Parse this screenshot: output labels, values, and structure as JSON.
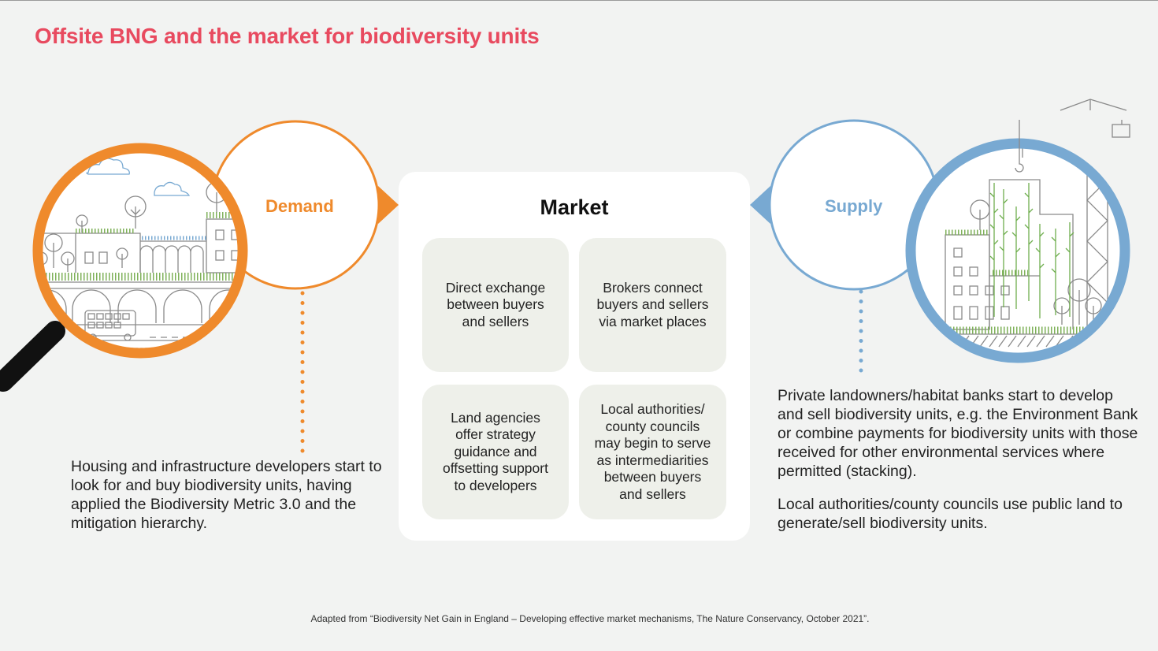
{
  "title": "Offsite BNG and the market for biodiversity units",
  "demand": {
    "label": "Demand",
    "description": "Housing and infrastructure developers start to look for and buy biodiversity units, having applied the Biodiversity Metric 3.0 and the mitigation hierarchy.",
    "color": "#ef8a2c"
  },
  "market": {
    "label": "Market",
    "cards": [
      "Direct exchange\nbetween buyers\nand sellers",
      "Brokers connect\nbuyers and sellers\nvia market places",
      "Land agencies\noffer strategy\nguidance and\noffsetting support\nto developers",
      "Local authorities/\ncounty councils\nmay begin to serve\nas intermediarities\nbetween buyers\nand sellers"
    ]
  },
  "supply": {
    "label": "Supply",
    "description_1": "Private landowners/habitat banks start to develop and sell biodiversity units, e.g. the Environment Bank or combine payments for biodiversity units with those received for other environmental services where permitted (stacking).",
    "description_2": "Local authorities/county councils use public land to generate/sell biodiversity units.",
    "color": "#78a9d2"
  },
  "title_color": "#e84a5f",
  "footnote": "Adapted from “Biodiversity Net Gain in England – Developing effective market mechanisms, The Nature Conservancy, October 2021”."
}
